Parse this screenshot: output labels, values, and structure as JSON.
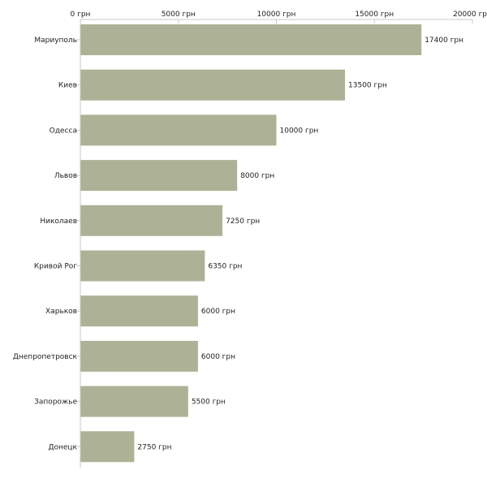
{
  "chart_data": {
    "type": "bar",
    "orientation": "horizontal",
    "categories": [
      "Мариуполь",
      "Киев",
      "Одесса",
      "Львов",
      "Николаев",
      "Кривой Рог",
      "Харьков",
      "Днепропетровск",
      "Запорожье",
      "Донецк"
    ],
    "values": [
      17400,
      13500,
      10000,
      8000,
      7250,
      6350,
      6000,
      6000,
      5500,
      2750
    ],
    "value_labels": [
      "17400 грн",
      "13500 грн",
      "10000 грн",
      "8000 грн",
      "7250 грн",
      "6350 грн",
      "6000 грн",
      "6000 грн",
      "5500 грн",
      "2750 грн"
    ],
    "xticks": [
      0,
      5000,
      10000,
      15000,
      20000
    ],
    "xtick_labels": [
      "0 грн",
      "5000 грн",
      "10000 грн",
      "15000 грн",
      "20000 грн"
    ],
    "xlim": [
      0,
      20000
    ],
    "axis_position": "top",
    "title": "",
    "xlabel": "",
    "ylabel": "",
    "grid": false,
    "colors": {
      "bar": "#adb296",
      "axis": "#c8c8c8",
      "text": "#222222"
    }
  }
}
